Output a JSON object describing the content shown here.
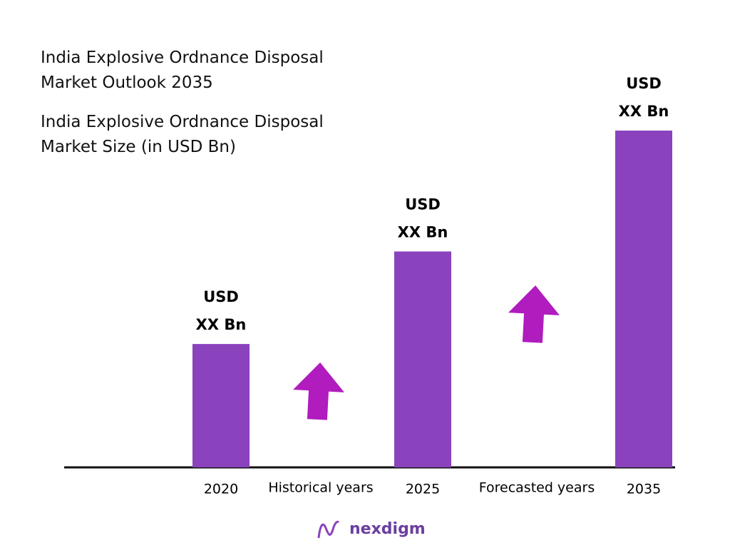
{
  "chart_data": {
    "type": "bar",
    "title": "India Explosive Ordnance Disposal Market Outlook 2035",
    "subtitle": "India Explosive Ordnance Disposal Market Size (in USD Bn)",
    "categories": [
      "2020",
      "2025",
      "2035"
    ],
    "values": [
      1,
      1.75,
      2.73
    ],
    "bar_labels": [
      [
        "USD",
        "XX Bn"
      ],
      [
        "USD",
        "XX Bn"
      ],
      [
        "USD",
        "XX Bn"
      ]
    ],
    "period_labels": [
      "Historical years",
      "Forecasted years"
    ],
    "color": "#8a42bd",
    "logo": "nexdigm"
  }
}
